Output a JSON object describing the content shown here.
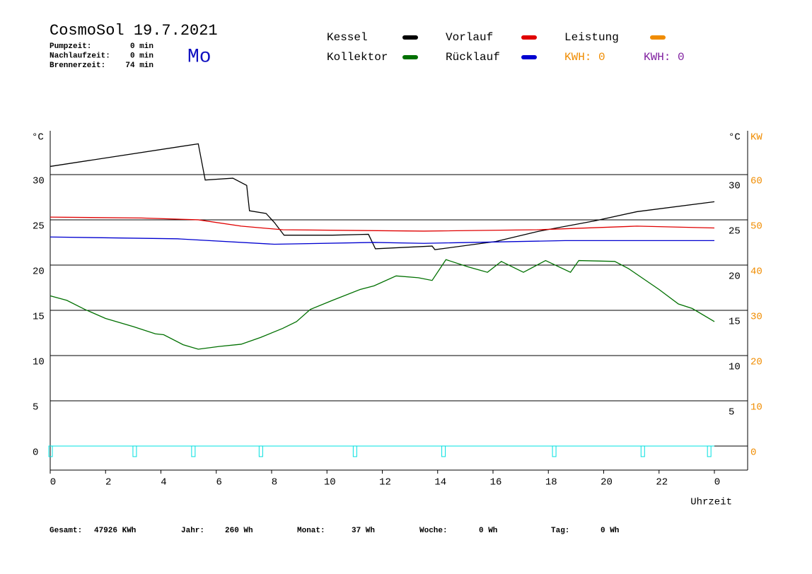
{
  "chart_data": {
    "type": "line",
    "title": "CosmoSol 19.7.2021",
    "day": "Mo",
    "stats": [
      {
        "label": "Pumpzeit:",
        "value": "0 min"
      },
      {
        "label": "Nachlaufzeit:",
        "value": "0 min"
      },
      {
        "label": "Brennerzeit:",
        "value": "74 min"
      }
    ],
    "kwh_labels": [
      {
        "text": "KWH: 0",
        "color": "#f08c00"
      },
      {
        "text": "KWH: 0",
        "color": "#8020a0"
      }
    ],
    "y_label": "°C",
    "y_right_label": "°C",
    "y2_label": "KW",
    "x_label": "Uhrzeit",
    "xlim": [
      0,
      24
    ],
    "xticks": [
      0,
      2,
      4,
      6,
      8,
      10,
      12,
      14,
      16,
      18,
      20,
      22,
      {
        "value": 24,
        "label": "0"
      }
    ],
    "ylim": [
      -2.66,
      34.84
    ],
    "yticks": [
      0,
      5,
      10,
      15,
      20,
      25,
      30
    ],
    "yticks_right": [
      5,
      10,
      15,
      20,
      25,
      30
    ],
    "y2lim": [
      -5.32,
      69.68
    ],
    "y2ticks": [
      0,
      10,
      20,
      30,
      40,
      50,
      60
    ],
    "y2color": "#f08c00",
    "grid": true,
    "series": [
      {
        "name": "Kessel",
        "color": "#000000",
        "x": [
          0,
          5.35,
          5.6,
          6.6,
          7.1,
          7.2,
          7.8,
          8.1,
          8.45,
          10.2,
          11.5,
          11.75,
          13.8,
          13.9,
          16.1,
          17.6,
          19.7,
          21.2,
          24
        ],
        "values": [
          30.9,
          33.4,
          29.4,
          29.6,
          28.8,
          26.0,
          25.7,
          24.7,
          23.3,
          23.3,
          23.4,
          21.8,
          22.1,
          21.7,
          22.6,
          23.7,
          24.9,
          25.9,
          27.0
        ]
      },
      {
        "name": "Vorlauf",
        "color": "#e00000",
        "x": [
          0,
          3.3,
          5.35,
          6.9,
          8.4,
          13.5,
          17.6,
          21.2,
          24
        ],
        "values": [
          25.3,
          25.2,
          25.0,
          24.3,
          23.9,
          23.75,
          23.9,
          24.3,
          24.1
        ]
      },
      {
        "name": "Leistung",
        "color": "#f08c00",
        "x": [],
        "values": []
      },
      {
        "name": "Kollektor",
        "color": "#007000",
        "x": [
          0,
          0.6,
          1.25,
          2.0,
          3.0,
          3.8,
          4.1,
          4.8,
          5.35,
          6.1,
          6.9,
          7.6,
          8.4,
          8.9,
          9.4,
          10.2,
          11.2,
          11.7,
          12.5,
          13.3,
          13.8,
          14.3,
          15.1,
          15.8,
          16.3,
          17.1,
          17.9,
          18.8,
          19.1,
          20.4,
          20.9,
          22.0,
          22.7,
          23.2,
          24
        ],
        "values": [
          16.6,
          16.1,
          15.1,
          14.1,
          13.2,
          12.4,
          12.3,
          11.2,
          10.7,
          11.0,
          11.25,
          12.0,
          13.0,
          13.75,
          15.1,
          16.1,
          17.3,
          17.7,
          18.8,
          18.6,
          18.3,
          20.6,
          19.8,
          19.2,
          20.4,
          19.2,
          20.5,
          19.2,
          20.5,
          20.4,
          19.6,
          17.3,
          15.7,
          15.2,
          13.75
        ]
      },
      {
        "name": "Rücklauf",
        "color": "#0000d0",
        "x": [
          0,
          4.6,
          8.1,
          11.7,
          13.5,
          18.6,
          24
        ],
        "values": [
          23.1,
          22.9,
          22.3,
          22.5,
          22.4,
          22.7,
          22.7
        ]
      }
    ],
    "pump": {
      "color": "#00e0e0",
      "x": [
        0,
        3.04,
        5.16,
        7.6,
        11.0,
        14.2,
        18.2,
        21.4,
        23.8
      ]
    },
    "totals": [
      {
        "label": "Gesamt:",
        "value": "47926 KWh"
      },
      {
        "label": "Jahr:",
        "value": "260 Wh"
      },
      {
        "label": "Monat:",
        "value": "37 Wh"
      },
      {
        "label": "Woche:",
        "value": "0 Wh"
      },
      {
        "label": "Tag:",
        "value": "0 Wh"
      }
    ]
  }
}
